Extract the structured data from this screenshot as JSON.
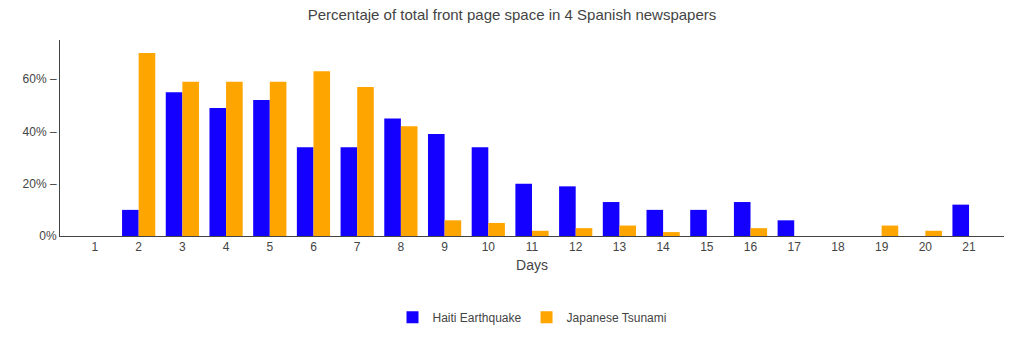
{
  "chart_data": {
    "type": "bar",
    "title": "Percentaje of total front page space in 4 Spanish newspapers",
    "xlabel": "Days",
    "x": [
      1,
      2,
      3,
      4,
      5,
      6,
      7,
      8,
      9,
      10,
      11,
      12,
      13,
      14,
      15,
      16,
      17,
      18,
      19,
      20,
      21
    ],
    "series": [
      {
        "name": "Haiti Earthquake",
        "color": "#1400ff",
        "values": [
          0,
          10,
          55,
          49,
          52,
          34,
          34,
          45,
          39,
          34,
          20,
          19,
          13,
          10,
          10,
          13,
          6,
          0,
          0,
          0,
          12
        ]
      },
      {
        "name": "Japanese Tsunami",
        "color": "#ffa500",
        "values": [
          0,
          70,
          59,
          59,
          59,
          63,
          57,
          42,
          6,
          5,
          2,
          3,
          4,
          1.5,
          0,
          3,
          0,
          0,
          4,
          2,
          0
        ]
      }
    ],
    "xlim": [
      0.2,
      21.8
    ],
    "xticks": [
      1,
      2,
      3,
      4,
      5,
      6,
      7,
      8,
      9,
      10,
      11,
      12,
      13,
      14,
      15,
      16,
      17,
      18,
      19,
      20,
      21
    ],
    "ylim": [
      0,
      75
    ],
    "yticks": [
      {
        "value": 0,
        "label": "0%"
      },
      {
        "value": 20,
        "label": "20% –"
      },
      {
        "value": 40,
        "label": "40% –"
      },
      {
        "value": 60,
        "label": "60% –"
      }
    ],
    "grid": false,
    "legend": "bottom"
  }
}
